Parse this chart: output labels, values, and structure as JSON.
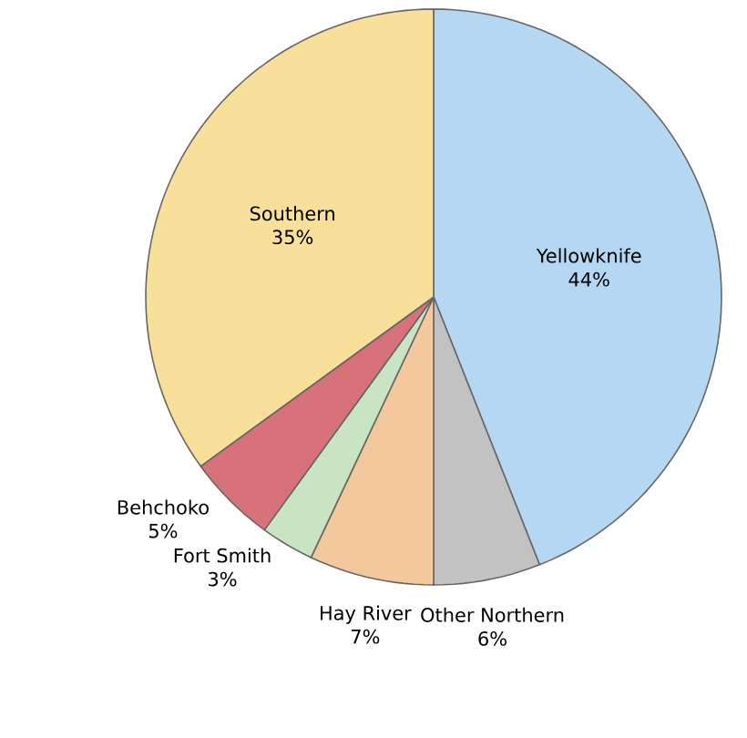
{
  "chart_data": {
    "type": "pie",
    "categories": [
      "Yellowknife",
      "Other Northern",
      "Hay River",
      "Fort Smith",
      "Behchoko",
      "Southern"
    ],
    "values": [
      44,
      6,
      7,
      3,
      5,
      35
    ],
    "value_labels": [
      "44%",
      "6%",
      "7%",
      "3%",
      "5%",
      "35%"
    ],
    "colors": [
      "#b5d8f2",
      "#c2c2c2",
      "#f2c89c",
      "#c8e4c2",
      "#d8727a",
      "#f8e09a"
    ]
  }
}
